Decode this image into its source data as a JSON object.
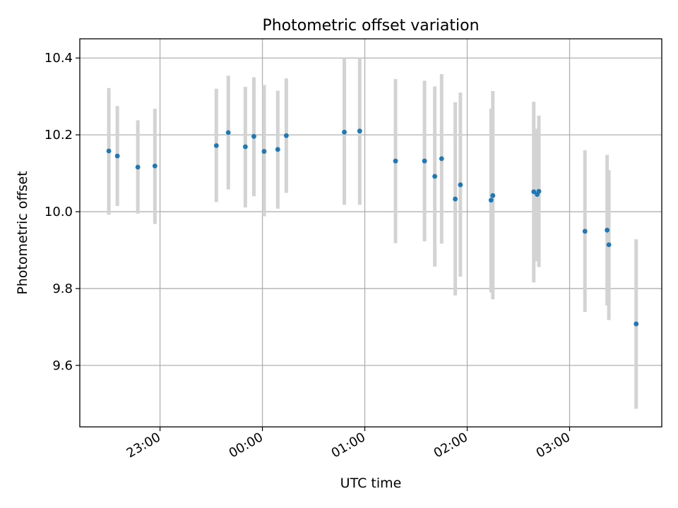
{
  "chart_data": {
    "type": "scatter",
    "title": "Photometric offset variation",
    "xlabel": "UTC time",
    "ylabel": "Photometric offset",
    "x_ticks": [
      "23:00",
      "00:00",
      "01:00",
      "02:00",
      "03:00"
    ],
    "y_ticks": [
      "9.6",
      "9.8",
      "10.0",
      "10.2",
      "10.4"
    ],
    "xlim": [
      "22:13",
      "03:54"
    ],
    "ylim": [
      9.44,
      10.45
    ],
    "grid": true,
    "colors": {
      "point": "#1f77b4",
      "errorbar": "#d3d3d3",
      "grid": "#b0b0b0"
    },
    "points": [
      {
        "t": "22:30",
        "y": 10.158,
        "lo": 9.992,
        "hi": 10.322
      },
      {
        "t": "22:35",
        "y": 10.145,
        "lo": 10.015,
        "hi": 10.275
      },
      {
        "t": "22:47",
        "y": 10.116,
        "lo": 9.995,
        "hi": 10.238
      },
      {
        "t": "22:57",
        "y": 10.119,
        "lo": 9.968,
        "hi": 10.268
      },
      {
        "t": "23:33",
        "y": 10.172,
        "lo": 10.025,
        "hi": 10.32
      },
      {
        "t": "23:40",
        "y": 10.206,
        "lo": 10.058,
        "hi": 10.354
      },
      {
        "t": "23:50",
        "y": 10.169,
        "lo": 10.011,
        "hi": 10.325
      },
      {
        "t": "23:55",
        "y": 10.196,
        "lo": 10.04,
        "hi": 10.35
      },
      {
        "t": "00:01",
        "y": 10.157,
        "lo": 9.988,
        "hi": 10.33
      },
      {
        "t": "00:09",
        "y": 10.162,
        "lo": 10.008,
        "hi": 10.315
      },
      {
        "t": "00:14",
        "y": 10.198,
        "lo": 10.049,
        "hi": 10.347
      },
      {
        "t": "00:48",
        "y": 10.207,
        "lo": 10.018,
        "hi": 10.4
      },
      {
        "t": "00:57",
        "y": 10.21,
        "lo": 10.018,
        "hi": 10.4
      },
      {
        "t": "01:18",
        "y": 10.132,
        "lo": 9.918,
        "hi": 10.345
      },
      {
        "t": "01:35",
        "y": 10.132,
        "lo": 9.923,
        "hi": 10.341
      },
      {
        "t": "01:41",
        "y": 10.092,
        "lo": 9.857,
        "hi": 10.326
      },
      {
        "t": "01:45",
        "y": 10.138,
        "lo": 9.917,
        "hi": 10.358
      },
      {
        "t": "01:53",
        "y": 10.033,
        "lo": 9.782,
        "hi": 10.285
      },
      {
        "t": "01:56",
        "y": 10.07,
        "lo": 9.831,
        "hi": 10.31
      },
      {
        "t": "02:14",
        "y": 10.03,
        "lo": 9.79,
        "hi": 10.268
      },
      {
        "t": "02:15",
        "y": 10.042,
        "lo": 9.772,
        "hi": 10.314
      },
      {
        "t": "02:39",
        "y": 10.052,
        "lo": 9.816,
        "hi": 10.286
      },
      {
        "t": "02:41",
        "y": 10.045,
        "lo": 9.871,
        "hi": 10.216
      },
      {
        "t": "02:42",
        "y": 10.053,
        "lo": 9.856,
        "hi": 10.25
      },
      {
        "t": "03:09",
        "y": 9.949,
        "lo": 9.739,
        "hi": 10.16
      },
      {
        "t": "03:22",
        "y": 9.952,
        "lo": 9.756,
        "hi": 10.148
      },
      {
        "t": "03:23",
        "y": 9.914,
        "lo": 9.718,
        "hi": 10.108
      },
      {
        "t": "03:39",
        "y": 9.708,
        "lo": 9.487,
        "hi": 9.928
      }
    ]
  }
}
